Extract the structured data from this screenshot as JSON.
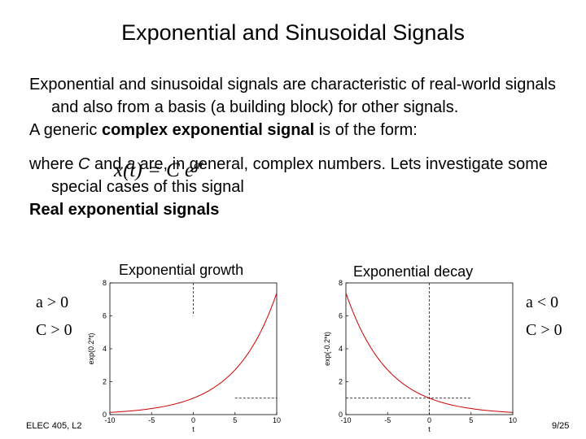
{
  "slide": {
    "title": "Exponential and Sinusoidal Signals",
    "p1": "Exponential and sinusoidal signals are characteristic of real-world signals and also from a basis (a building block) for other signals.",
    "p2_pre": "A generic ",
    "p2_bold": "complex exponential signal",
    "p2_post": " is of the form:",
    "formula_lhs": "x(t) = C e",
    "formula_exp": "at",
    "p3_pre": "where ",
    "p3_c": "C",
    "p3_and": " and ",
    "p3_a": "a",
    "p3_post": " are, in general, complex numbers.  Lets investigate some special cases of this signal",
    "p4": "Real exponential signals",
    "footer_left": "ELEC 405, L2",
    "footer_right": "9/25"
  },
  "chart_data": [
    {
      "type": "line",
      "title": "Exponential growth",
      "ylabel": "exp(0.2*t)",
      "xlabel": "t",
      "xlim": [
        -10,
        10
      ],
      "ylim": [
        0,
        8
      ],
      "xticks": [
        "-10",
        "-5",
        "0",
        "5",
        "10"
      ],
      "yticks": [
        "0",
        "2",
        "4",
        "6",
        "8"
      ],
      "function": "exp(0.2*t)",
      "conditions": [
        "a > 0",
        "C > 0"
      ],
      "color": "#cc0000"
    },
    {
      "type": "line",
      "title": "Exponential decay",
      "ylabel": "exp(-0.2*t)",
      "xlabel": "t",
      "xlim": [
        -10,
        10
      ],
      "ylim": [
        0,
        8
      ],
      "xticks": [
        "-10",
        "-5",
        "0",
        "5",
        "10"
      ],
      "yticks": [
        "0",
        "2",
        "4",
        "6",
        "8"
      ],
      "function": "exp(-0.2*t)",
      "conditions": [
        "a < 0",
        "C > 0"
      ],
      "color": "#cc0000"
    }
  ]
}
